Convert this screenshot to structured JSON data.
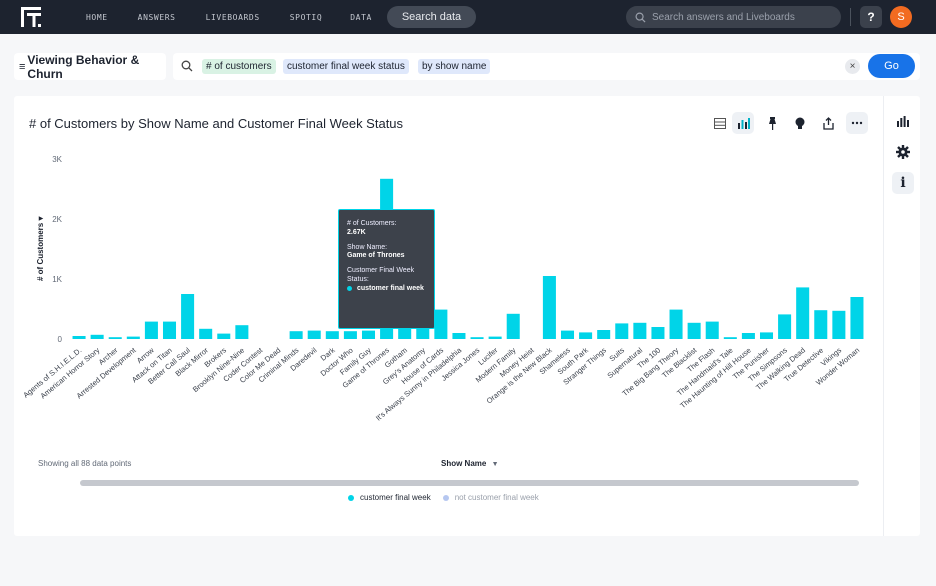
{
  "nav": {
    "links": [
      "HOME",
      "ANSWERS",
      "LIVEBOARDS",
      "SPOTIQ",
      "DATA"
    ],
    "search_data_label": "Search data",
    "global_search_placeholder": "Search answers and Liveboards",
    "help_label": "?",
    "avatar_initial": "S"
  },
  "search": {
    "source_name": "Viewing Behavior & Churn",
    "tokens": [
      "# of customers",
      "customer final week status",
      "by show name"
    ],
    "clear_label": "×",
    "go_label": "Go"
  },
  "answer": {
    "title": "# of Customers by Show Name and Customer Final Week Status",
    "toolbar_icons": [
      "table-icon",
      "chart-icon",
      "pin-icon",
      "spotiq-bulb-icon",
      "share-icon",
      "more-icon"
    ],
    "rail_icons": [
      "chart-type-icon",
      "settings-gear-icon",
      "info-icon"
    ],
    "footer_count": "Showing all 88 data points",
    "x_axis_selector": "Show Name",
    "tooltip": {
      "measure_label": "# of Customers:",
      "measure_value": "2.67K",
      "dim_label": "Show Name:",
      "dim_value": "Game of Thrones",
      "status_label": "Customer Final Week Status:",
      "status_value": "customer final week"
    }
  },
  "colors": {
    "bar": "#00d4e8",
    "muted": "#b6c7f0",
    "accent": "#1873e8"
  },
  "chart_data": {
    "type": "bar",
    "ylabel": "# of Customers",
    "y_ticks": [
      "0",
      "1K",
      "2K",
      "3K"
    ],
    "ylim": [
      0,
      3000
    ],
    "categories": [
      "Agents of S.H.I.E.L.D.",
      "American Horror Story",
      "Archer",
      "Arrested Development",
      "Arrow",
      "Attack on Titan",
      "Better Call Saul",
      "Black Mirror",
      "Brokers",
      "Brooklyn Nine-Nine",
      "Coder Contest",
      "Color Me Dead",
      "Criminal Minds",
      "Daredevil",
      "Dark",
      "Doctor Who",
      "Family Guy",
      "Game of Thrones",
      "Gotham",
      "Grey's Anatomy",
      "House of Cards",
      "It's Always Sunny in Philadelphia",
      "Jessica Jones",
      "Lucifer",
      "Modern Family",
      "Money Heist",
      "Orange is the New Black",
      "Shameless",
      "South Park",
      "Stranger Things",
      "Suits",
      "Supernatural",
      "The 100",
      "The Big Bang Theory",
      "The Blacklist",
      "The Flash",
      "The Handmaid's Tale",
      "The Haunting of Hill House",
      "The Punisher",
      "The Simpsons",
      "The Walking Dead",
      "True Detective",
      "Vikings",
      "Wonder Woman"
    ],
    "series": [
      {
        "name": "customer final week",
        "values": [
          50,
          70,
          30,
          40,
          290,
          290,
          750,
          170,
          90,
          230,
          0,
          0,
          130,
          140,
          130,
          130,
          140,
          2670,
          190,
          380,
          490,
          100,
          30,
          40,
          420,
          0,
          1050,
          140,
          110,
          150,
          260,
          270,
          200,
          490,
          270,
          290,
          30,
          100,
          110,
          410,
          860,
          480,
          470,
          700
        ]
      },
      {
        "name": "not customer final week"
      }
    ],
    "legend_position": "bottom"
  }
}
